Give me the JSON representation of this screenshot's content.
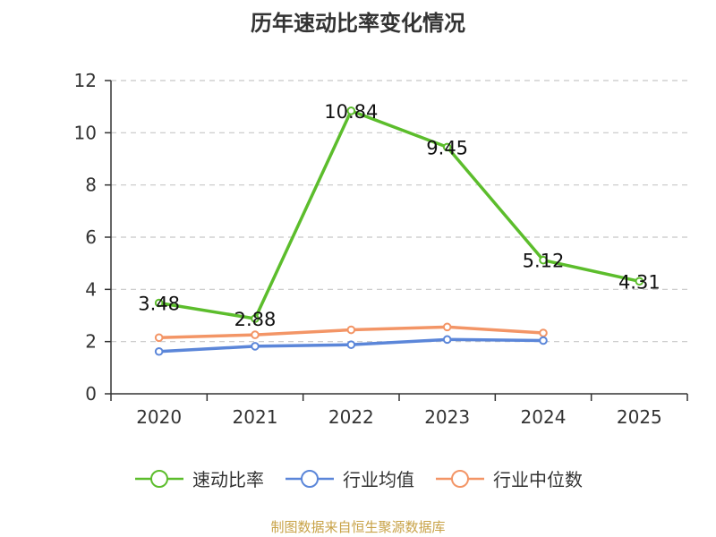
{
  "chart_data": {
    "type": "line",
    "title": "历年速动比率变化情况",
    "categories": [
      "2020",
      "2021",
      "2022",
      "2023",
      "2024",
      "2025"
    ],
    "ylim": [
      0,
      12
    ],
    "yticks": [
      0,
      2,
      4,
      6,
      8,
      10,
      12
    ],
    "grid": true,
    "legend_position": "bottom",
    "series": [
      {
        "name": "速动比率",
        "color": "#5cbd2c",
        "values": [
          3.48,
          2.88,
          10.84,
          9.45,
          5.12,
          4.31
        ],
        "show_labels": true
      },
      {
        "name": "行业均值",
        "color": "#5b86d9",
        "values": [
          1.62,
          1.82,
          1.88,
          2.08,
          2.04,
          null
        ],
        "show_labels": false
      },
      {
        "name": "行业中位数",
        "color": "#f39566",
        "values": [
          2.15,
          2.26,
          2.45,
          2.56,
          2.33,
          null
        ],
        "show_labels": false
      }
    ],
    "data_labels": [
      "3.48",
      "2.88",
      "10.84",
      "9.45",
      "5.12",
      "4.31"
    ]
  },
  "source": "制图数据来自恒生聚源数据库"
}
